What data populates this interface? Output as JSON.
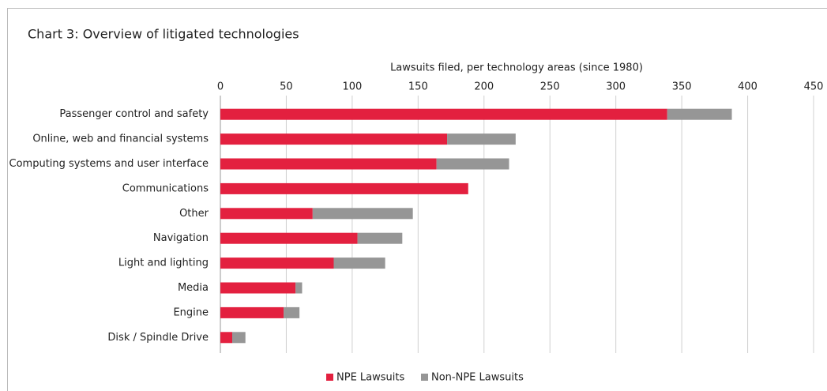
{
  "chart_data": {
    "type": "bar",
    "stacked": true,
    "orientation": "horizontal",
    "title": "Chart 3: Overview of litigated technologies",
    "x_label": "Lawsuits filed, per technology areas (since 1980)",
    "categories": [
      "Passenger control and safety",
      "Online, web and financial systems",
      "Computing systems and user interface",
      "Communications",
      "Other",
      "Navigation",
      "Light and lighting",
      "Media",
      "Engine",
      "Disk / Spindle Drive"
    ],
    "series": [
      {
        "name": "NPE Lawsuits",
        "color": "#e3203f",
        "values": [
          339,
          172,
          164,
          188,
          70,
          104,
          86,
          57,
          48,
          9
        ]
      },
      {
        "name": "Non-NPE Lawsuits",
        "color": "#969696",
        "values": [
          49,
          52,
          55,
          0,
          76,
          34,
          39,
          5,
          12,
          10
        ]
      }
    ],
    "xlim": [
      0,
      450
    ],
    "xticks": [
      0,
      50,
      100,
      150,
      200,
      250,
      300,
      350,
      400,
      450
    ],
    "grid": true,
    "legend": "bottom"
  }
}
